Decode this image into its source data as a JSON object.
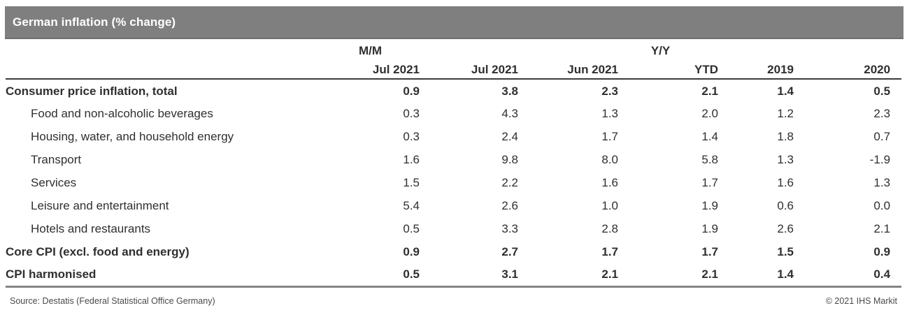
{
  "title": "German inflation (% change)",
  "colors": {
    "title_bar_bg": "#7f7f7f",
    "title_text": "#ffffff",
    "body_text": "#2f2f33",
    "header_rule": "#3c3c3c",
    "bottom_rule": "#858585"
  },
  "table": {
    "group_mm": "M/M",
    "group_yy": "Y/Y",
    "columns": [
      "Jul 2021",
      "Jul 2021",
      "Jun 2021",
      "YTD",
      "2019",
      "2020"
    ],
    "rows": [
      {
        "label": "Consumer price inflation, total",
        "bold": true,
        "indent": false,
        "values": [
          "0.9",
          "3.8",
          "2.3",
          "2.1",
          "1.4",
          "0.5"
        ]
      },
      {
        "label": "Food and non-alcoholic beverages",
        "bold": false,
        "indent": true,
        "values": [
          "0.3",
          "4.3",
          "1.3",
          "2.0",
          "1.2",
          "2.3"
        ]
      },
      {
        "label": "Housing, water, and household energy",
        "bold": false,
        "indent": true,
        "values": [
          "0.3",
          "2.4",
          "1.7",
          "1.4",
          "1.8",
          "0.7"
        ]
      },
      {
        "label": "Transport",
        "bold": false,
        "indent": true,
        "values": [
          "1.6",
          "9.8",
          "8.0",
          "5.8",
          "1.3",
          "-1.9"
        ]
      },
      {
        "label": "Services",
        "bold": false,
        "indent": true,
        "values": [
          "1.5",
          "2.2",
          "1.6",
          "1.7",
          "1.6",
          "1.3"
        ]
      },
      {
        "label": "Leisure and entertainment",
        "bold": false,
        "indent": true,
        "values": [
          "5.4",
          "2.6",
          "1.0",
          "1.9",
          "0.6",
          "0.0"
        ]
      },
      {
        "label": "Hotels and restaurants",
        "bold": false,
        "indent": true,
        "values": [
          "0.5",
          "3.3",
          "2.8",
          "1.9",
          "2.6",
          "2.1"
        ]
      },
      {
        "label": "Core CPI (excl. food and energy)",
        "bold": true,
        "indent": false,
        "values": [
          "0.9",
          "2.7",
          "1.7",
          "1.7",
          "1.5",
          "0.9"
        ]
      },
      {
        "label": "CPI harmonised",
        "bold": true,
        "indent": false,
        "values": [
          "0.5",
          "3.1",
          "2.1",
          "2.1",
          "1.4",
          "0.4"
        ]
      }
    ]
  },
  "footer": {
    "source": "Source: Destatis (Federal Statistical Office Germany)",
    "copyright": "© 2021 IHS Markit"
  },
  "chart_data": {
    "type": "table",
    "title": "German inflation (% change)",
    "column_groups": [
      {
        "label": "M/M",
        "columns": [
          "Jul 2021"
        ]
      },
      {
        "label": "Y/Y",
        "columns": [
          "Jul 2021",
          "Jun 2021",
          "YTD",
          "2019",
          "2020"
        ]
      }
    ],
    "columns": [
      "M/M Jul 2021",
      "Y/Y Jul 2021",
      "Y/Y Jun 2021",
      "Y/Y YTD",
      "Y/Y 2019",
      "Y/Y 2020"
    ],
    "rows": [
      {
        "label": "Consumer price inflation, total",
        "values": [
          0.9,
          3.8,
          2.3,
          2.1,
          1.4,
          0.5
        ]
      },
      {
        "label": "Food and non-alcoholic beverages",
        "values": [
          0.3,
          4.3,
          1.3,
          2.0,
          1.2,
          2.3
        ]
      },
      {
        "label": "Housing, water, and household energy",
        "values": [
          0.3,
          2.4,
          1.7,
          1.4,
          1.8,
          0.7
        ]
      },
      {
        "label": "Transport",
        "values": [
          1.6,
          9.8,
          8.0,
          5.8,
          1.3,
          -1.9
        ]
      },
      {
        "label": "Services",
        "values": [
          1.5,
          2.2,
          1.6,
          1.7,
          1.6,
          1.3
        ]
      },
      {
        "label": "Leisure and entertainment",
        "values": [
          5.4,
          2.6,
          1.0,
          1.9,
          0.6,
          0.0
        ]
      },
      {
        "label": "Hotels and restaurants",
        "values": [
          0.5,
          3.3,
          2.8,
          1.9,
          2.6,
          2.1
        ]
      },
      {
        "label": "Core CPI (excl. food and energy)",
        "values": [
          0.9,
          2.7,
          1.7,
          1.7,
          1.5,
          0.9
        ]
      },
      {
        "label": "CPI harmonised",
        "values": [
          0.5,
          3.1,
          2.1,
          2.1,
          1.4,
          0.4
        ]
      }
    ],
    "source": "Source: Destatis (Federal Statistical Office Germany)",
    "copyright": "© 2021 IHS Markit"
  }
}
